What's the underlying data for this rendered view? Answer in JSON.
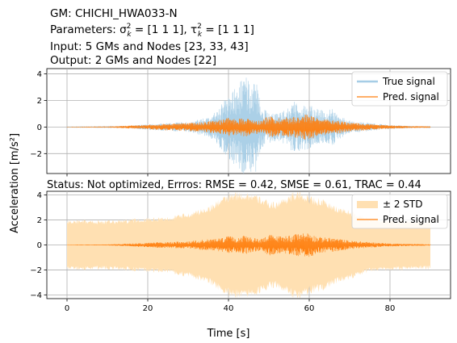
{
  "header": {
    "line1": "GM: CHICHI_HWA033-N",
    "line2_prefix": "Parameters: σ",
    "line2_sigma_sup": "2",
    "line2_sigma_sub": "k",
    "line2_mid": " = [1 1 1], τ",
    "line2_tau_sup": "2",
    "line2_tau_sub": "k",
    "line2_suffix": " = [1 1 1]",
    "line3": "Input: 5 GMs and Nodes [23, 33, 43]",
    "line4": "Output: 2 GMs and Nodes [22]"
  },
  "status": "Status: Not optimized, Errros: RMSE = 0.42, SMSE = 0.61, TRAC = 0.44",
  "shared_ylabel": "Acceleration [m/s²]",
  "shared_xlabel": "Time [s]",
  "colors": {
    "true_signal": "#a6cde6",
    "pred_signal": "#ff7f0e",
    "std_band": "#ffe0b2",
    "grid": "#b0b0b0"
  },
  "chart_data": [
    {
      "type": "line",
      "title": "",
      "xlabel": "",
      "ylabel": "",
      "xlim": [
        -5,
        95
      ],
      "ylim": [
        -3.5,
        4.4
      ],
      "xticks": [
        0,
        20,
        40,
        60,
        80
      ],
      "yticks": [
        -2,
        0,
        2,
        4
      ],
      "ytick_labels": [
        "−2",
        "0",
        "2",
        "4"
      ],
      "grid": true,
      "legend": "top-right",
      "series": [
        {
          "name": "True signal",
          "style": "true",
          "envelope_x": [
            0,
            10,
            15,
            20,
            25,
            30,
            33,
            36,
            38,
            40,
            42,
            43,
            44,
            45,
            46,
            47,
            48,
            50,
            52,
            54,
            56,
            58,
            60,
            62,
            64,
            66,
            68,
            70,
            72,
            75,
            80,
            85,
            90
          ],
          "envelope_y": [
            0.02,
            0.03,
            0.08,
            0.22,
            0.3,
            0.4,
            0.6,
            0.9,
            1.6,
            2.5,
            3.0,
            3.6,
            3.9,
            3.5,
            3.8,
            3.3,
            1.6,
            1.2,
            1.1,
            1.3,
            2.0,
            1.8,
            1.7,
            1.4,
            1.2,
            1.4,
            0.8,
            0.5,
            0.4,
            0.3,
            0.15,
            0.08,
            0.04
          ]
        },
        {
          "name": "Pred. signal",
          "style": "pred",
          "envelope_x": [
            0,
            10,
            15,
            20,
            25,
            30,
            35,
            38,
            40,
            42,
            44,
            46,
            48,
            50,
            52,
            54,
            56,
            58,
            60,
            62,
            64,
            66,
            68,
            70,
            72,
            75,
            80,
            85,
            90
          ],
          "envelope_y": [
            0.02,
            0.04,
            0.1,
            0.18,
            0.25,
            0.3,
            0.45,
            0.55,
            0.7,
            0.6,
            0.75,
            0.55,
            0.5,
            0.85,
            0.7,
            0.75,
            0.8,
            0.95,
            1.0,
            0.65,
            0.6,
            0.55,
            0.45,
            0.35,
            0.3,
            0.22,
            0.12,
            0.08,
            0.05
          ]
        }
      ]
    },
    {
      "type": "line",
      "title": "",
      "xlabel": "",
      "ylabel": "",
      "xlim": [
        -5,
        95
      ],
      "ylim": [
        -4.3,
        4.3
      ],
      "xticks": [
        0,
        20,
        40,
        60,
        80
      ],
      "xtick_labels": [
        "0",
        "20",
        "40",
        "60",
        "80"
      ],
      "yticks": [
        -4,
        -2,
        0,
        2,
        4
      ],
      "ytick_labels": [
        "−4",
        "−2",
        "0",
        "2",
        "4"
      ],
      "grid": true,
      "legend": "top-right",
      "series": [
        {
          "name": "± 2 STD",
          "style": "band",
          "envelope_x": [
            0,
            10,
            15,
            20,
            25,
            30,
            33,
            36,
            38,
            40,
            42,
            44,
            46,
            48,
            50,
            52,
            54,
            56,
            58,
            60,
            62,
            64,
            66,
            68,
            70,
            72,
            75,
            80,
            85,
            90
          ],
          "envelope_y": [
            2.0,
            2.0,
            2.05,
            2.2,
            2.3,
            2.6,
            2.9,
            3.3,
            3.8,
            4.1,
            4.3,
            4.3,
            4.2,
            3.9,
            3.5,
            3.5,
            3.9,
            4.3,
            4.3,
            4.0,
            3.8,
            3.6,
            3.2,
            3.0,
            2.8,
            2.5,
            2.2,
            2.05,
            2.0,
            2.0
          ]
        },
        {
          "name": "Pred. signal",
          "style": "pred",
          "envelope_x": [
            0,
            10,
            15,
            20,
            25,
            30,
            35,
            38,
            40,
            42,
            44,
            46,
            48,
            50,
            52,
            54,
            56,
            58,
            60,
            62,
            64,
            66,
            68,
            70,
            72,
            75,
            80,
            85,
            90
          ],
          "envelope_y": [
            0.02,
            0.04,
            0.1,
            0.18,
            0.25,
            0.3,
            0.45,
            0.55,
            0.7,
            0.6,
            0.75,
            0.55,
            0.5,
            0.85,
            0.7,
            0.75,
            0.8,
            0.95,
            1.0,
            0.65,
            0.6,
            0.55,
            0.45,
            0.35,
            0.3,
            0.22,
            0.12,
            0.08,
            0.05
          ]
        }
      ]
    }
  ]
}
